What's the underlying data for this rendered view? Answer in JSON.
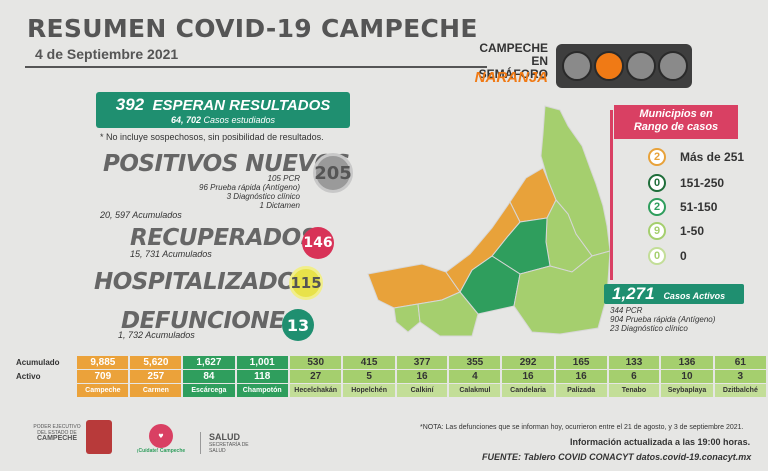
{
  "title": "RESUMEN COVID-19 CAMPECHE",
  "date": "4 de Septiembre 2021",
  "semaforo": {
    "line1": "CAMPECHE",
    "line2": "EN SEMÁFORO",
    "level": "NARANJA",
    "lights": [
      "#8a8a8a",
      "#f07a15",
      "#8a8a8a",
      "#8a8a8a"
    ]
  },
  "esperan": {
    "number": "392",
    "label": "ESPERAN RESULTADOS",
    "estudiados": "64, 702",
    "estudiados_label": "Casos estudiados"
  },
  "note": "* No incluye sospechosos, sin posibilidad de resultados.",
  "positivos": {
    "label": "POSITIVOS NUEVOS",
    "value": "205",
    "pcr": "105 PCR",
    "rapida": "96 Prueba rápida (Antígeno)",
    "clinico": "3 Diagnóstico clínico",
    "dictamen": "1 Dictamen",
    "acumulados": "20, 597 Acumulados"
  },
  "recuperados": {
    "label": "RECUPERADOS",
    "value": "146",
    "acumulados": "15, 731 Acumulados"
  },
  "hospitalizados": {
    "label": "HOSPITALIZADOS",
    "value": "115"
  },
  "defunciones": {
    "label": "DEFUNCIONES",
    "value": "13",
    "acumulados": "1, 732 Acumulados"
  },
  "municipios": {
    "title_1": "Municipios en",
    "title_2": "Rango de casos",
    "legend": [
      {
        "count": "2",
        "range": "Más de 251",
        "color": "#e8a23a"
      },
      {
        "count": "0",
        "range": "151-250",
        "color": "#1f6e3a"
      },
      {
        "count": "2",
        "range": "51-150",
        "color": "#2f9e5d"
      },
      {
        "count": "9",
        "range": "1-50",
        "color": "#a5cf6e"
      },
      {
        "count": "0",
        "range": "0",
        "color": "#c3de98"
      }
    ]
  },
  "activos": {
    "value": "1,271",
    "label": "Casos Activos",
    "pcr": "344 PCR",
    "rapida": "904 Prueba rápida (Antígeno)",
    "clinico": "23 Diagnóstico clínico"
  },
  "table": {
    "row_labels": [
      "Acumulado",
      "Activo"
    ],
    "municipios": [
      {
        "name": "Campeche",
        "acum": "9,885",
        "activo": "709",
        "cls": "ora"
      },
      {
        "name": "Carmen",
        "acum": "5,620",
        "activo": "257",
        "cls": "ora"
      },
      {
        "name": "Escárcega",
        "acum": "1,627",
        "activo": "84",
        "cls": "gr"
      },
      {
        "name": "Champotón",
        "acum": "1,001",
        "activo": "118",
        "cls": "gr"
      },
      {
        "name": "Hecelchakán",
        "acum": "530",
        "activo": "27",
        "cls": "lg"
      },
      {
        "name": "Hopelchén",
        "acum": "415",
        "activo": "5",
        "cls": "lg"
      },
      {
        "name": "Calkiní",
        "acum": "377",
        "activo": "16",
        "cls": "lg"
      },
      {
        "name": "Calakmul",
        "acum": "355",
        "activo": "4",
        "cls": "lg"
      },
      {
        "name": "Candelaria",
        "acum": "292",
        "activo": "16",
        "cls": "lg"
      },
      {
        "name": "Palizada",
        "acum": "165",
        "activo": "16",
        "cls": "lg"
      },
      {
        "name": "Tenabo",
        "acum": "133",
        "activo": "6",
        "cls": "lg"
      },
      {
        "name": "Seybaplaya",
        "acum": "136",
        "activo": "10",
        "cls": "lg"
      },
      {
        "name": "Dzitbalché",
        "acum": "61",
        "activo": "3",
        "cls": "lg"
      }
    ]
  },
  "footer": {
    "nota": "*NOTA: Las defunciones que se informan hoy, ocurrieron entre el 21 de agosto, y 3 de septiembre 2021.",
    "actualizada": "Información actualizada a las 19:00 horas.",
    "fuente": "FUENTE: Tablero COVID CONACYT datos.covid-19.conacyt.mx",
    "logo1_a": "PODER EJECUTIVO",
    "logo1_b": "DEL ESTADO DE",
    "logo1_c": "CAMPECHE",
    "logo2": "¡Cuídate! Campeche",
    "salud": "SALUD",
    "salud_sub": "SECRETARÍA DE SALUD"
  },
  "colors": {
    "green": "#1f8f70",
    "orange": "#f07a15",
    "pink": "#d94063"
  }
}
